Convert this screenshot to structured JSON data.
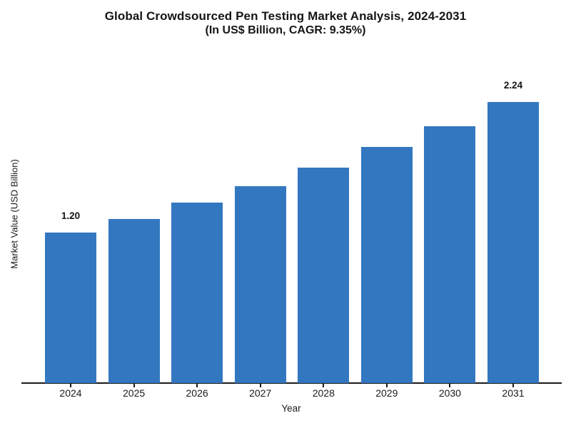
{
  "chart": {
    "title_line1": "Global Crowdsourced Pen Testing Market Analysis, 2024-2031",
    "title_line2": "(In US$ Billion, CAGR: 9.35%)",
    "xlabel": "Year",
    "ylabel": "Market Value (USD Billion)",
    "colors": {
      "bar": "#3377c0",
      "axis": "#1a1a1a",
      "text": "#1a1a1a",
      "background": "#ffffff"
    }
  },
  "chart_data": {
    "type": "bar",
    "categories": [
      "2024",
      "2025",
      "2026",
      "2027",
      "2028",
      "2029",
      "2030",
      "2031"
    ],
    "values": [
      1.2,
      1.31,
      1.44,
      1.57,
      1.72,
      1.88,
      2.05,
      2.24
    ],
    "title": "Global Crowdsourced Pen Testing Market Analysis, 2024-2031",
    "subtitle": "(In US$ Billion, CAGR: 9.35%)",
    "xlabel": "Year",
    "ylabel": "Market Value (USD Billion)",
    "ylim": [
      0,
      2.4
    ],
    "grid": false,
    "legend": false,
    "bar_color": "#3377c0",
    "cagr": "9.35%",
    "visible_value_labels": [
      {
        "category": "2024",
        "label": "1.20"
      },
      {
        "category": "2031",
        "label": "2.24"
      }
    ]
  }
}
